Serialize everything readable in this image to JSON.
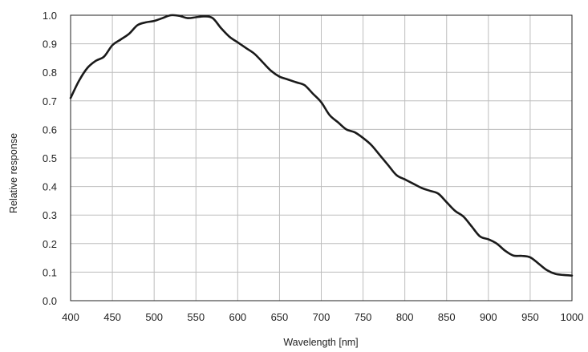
{
  "chart_data": {
    "type": "line",
    "title": "",
    "xlabel": "Wavelength [nm]",
    "ylabel": "Relative response",
    "xlim": [
      400,
      1000
    ],
    "ylim": [
      0.0,
      1.0
    ],
    "x_ticks": [
      400,
      450,
      500,
      550,
      600,
      650,
      700,
      750,
      800,
      850,
      900,
      950,
      1000
    ],
    "x_tick_labels": [
      "400",
      "450",
      "500",
      "550",
      "600",
      "650",
      "700",
      "750",
      "800",
      "850",
      "900",
      "950",
      "1000"
    ],
    "y_ticks": [
      0.0,
      0.1,
      0.2,
      0.3,
      0.4,
      0.5,
      0.6,
      0.7,
      0.8,
      0.9,
      1.0
    ],
    "y_tick_labels": [
      "0.0",
      "0.1",
      "0.2",
      "0.3",
      "0.4",
      "0.5",
      "0.6",
      "0.7",
      "0.8",
      "0.9",
      "1.0"
    ],
    "grid": true,
    "legend": "none",
    "series": [
      {
        "color": "#1a1a1a",
        "x": [
          400,
          410,
          420,
          430,
          440,
          450,
          460,
          470,
          480,
          490,
          500,
          510,
          520,
          530,
          540,
          550,
          560,
          570,
          580,
          590,
          600,
          610,
          620,
          630,
          640,
          650,
          660,
          670,
          680,
          690,
          700,
          710,
          720,
          730,
          740,
          750,
          760,
          770,
          780,
          790,
          800,
          810,
          820,
          830,
          840,
          850,
          860,
          870,
          880,
          890,
          900,
          910,
          920,
          930,
          940,
          950,
          960,
          970,
          980,
          990,
          1000
        ],
        "y": [
          0.71,
          0.77,
          0.815,
          0.84,
          0.855,
          0.895,
          0.915,
          0.935,
          0.965,
          0.975,
          0.98,
          0.99,
          1.0,
          0.998,
          0.99,
          0.993,
          0.996,
          0.99,
          0.955,
          0.925,
          0.905,
          0.885,
          0.865,
          0.835,
          0.805,
          0.785,
          0.775,
          0.765,
          0.755,
          0.725,
          0.695,
          0.65,
          0.625,
          0.6,
          0.59,
          0.57,
          0.545,
          0.51,
          0.475,
          0.44,
          0.425,
          0.41,
          0.395,
          0.385,
          0.375,
          0.345,
          0.315,
          0.295,
          0.26,
          0.225,
          0.215,
          0.2,
          0.175,
          0.158,
          0.157,
          0.152,
          0.13,
          0.107,
          0.094,
          0.09,
          0.088
        ]
      }
    ]
  }
}
